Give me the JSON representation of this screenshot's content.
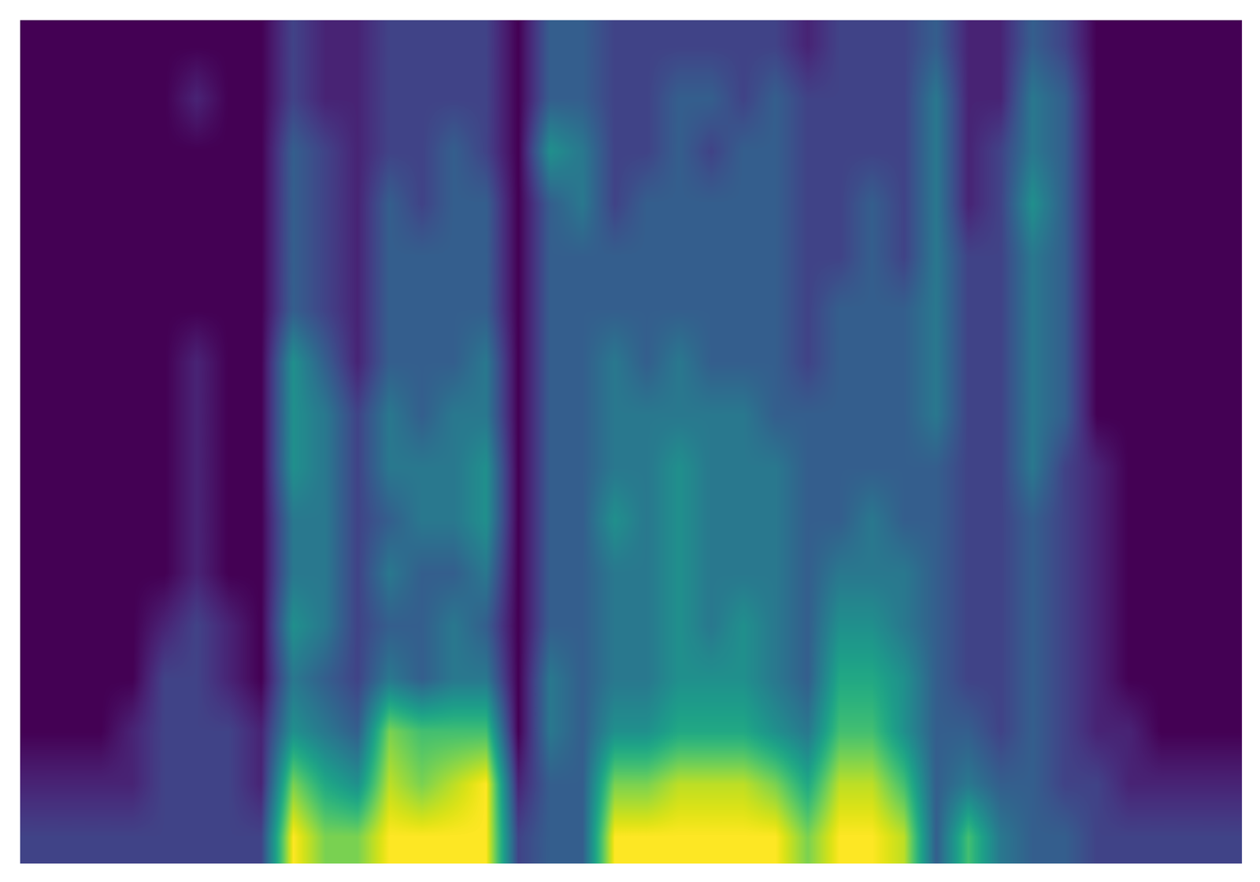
{
  "chart_data": {
    "type": "heatmap",
    "tick_labels": false,
    "cells": [
      [
        0,
        0,
        0,
        0,
        0,
        0,
        0,
        0,
        0,
        0,
        0,
        0,
        0,
        0,
        1,
        2
      ],
      [
        0,
        0,
        0,
        0,
        0,
        0,
        0,
        0,
        0,
        0,
        0,
        0,
        0,
        0,
        1,
        2
      ],
      [
        0,
        0,
        0,
        0,
        0,
        0,
        0,
        0,
        0,
        0,
        0,
        0,
        0,
        0,
        1,
        2
      ],
      [
        0,
        0,
        0,
        0,
        0,
        0,
        0,
        0,
        0,
        0,
        0,
        0,
        0,
        1,
        1,
        2
      ],
      [
        0,
        0,
        0,
        0,
        0,
        0,
        0,
        0,
        0,
        0,
        0,
        1,
        2,
        2,
        2,
        2
      ],
      [
        0,
        1,
        0,
        0,
        0,
        0,
        1,
        1,
        1,
        1,
        1,
        2,
        2,
        2,
        2,
        2
      ],
      [
        0,
        0,
        0,
        0,
        0,
        0,
        0,
        0,
        0,
        0,
        0,
        1,
        1,
        2,
        2,
        2
      ],
      [
        0,
        0,
        0,
        0,
        0,
        0,
        0,
        0,
        0,
        0,
        0,
        0,
        0,
        1,
        1,
        2
      ],
      [
        2,
        2,
        3,
        3,
        3,
        3,
        5,
        5,
        5,
        4,
        4,
        5,
        4,
        5,
        8,
        10
      ],
      [
        1,
        1,
        2,
        2,
        2,
        2,
        3,
        4,
        4,
        4,
        4,
        4,
        3,
        4,
        6,
        8
      ],
      [
        1,
        1,
        1,
        1,
        1,
        1,
        1,
        2,
        2,
        2,
        2,
        2,
        2,
        3,
        5,
        8
      ],
      [
        2,
        2,
        2,
        3,
        3,
        3,
        3,
        4,
        4,
        3,
        4,
        3,
        4,
        8,
        9,
        10
      ],
      [
        2,
        2,
        2,
        2,
        3,
        3,
        3,
        3,
        4,
        4,
        3,
        3,
        3,
        7,
        8,
        10
      ],
      [
        2,
        2,
        3,
        3,
        3,
        3,
        3,
        4,
        4,
        4,
        3,
        4,
        4,
        7,
        9,
        10
      ],
      [
        2,
        2,
        2,
        3,
        3,
        3,
        4,
        4,
        5,
        5,
        4,
        3,
        4,
        7,
        10,
        10
      ],
      [
        0,
        0,
        0,
        0,
        0,
        0,
        0,
        0,
        0,
        0,
        0,
        0,
        0,
        0,
        1,
        2
      ],
      [
        3,
        3,
        5,
        3,
        3,
        3,
        3,
        3,
        3,
        3,
        3,
        3,
        4,
        4,
        3,
        3
      ],
      [
        3,
        3,
        4,
        4,
        3,
        3,
        3,
        3,
        3,
        3,
        3,
        3,
        3,
        3,
        3,
        3
      ],
      [
        2,
        2,
        2,
        2,
        3,
        3,
        4,
        4,
        4,
        5,
        4,
        4,
        4,
        5,
        8,
        10
      ],
      [
        2,
        2,
        2,
        3,
        3,
        3,
        3,
        4,
        4,
        4,
        4,
        4,
        4,
        5,
        8,
        10
      ],
      [
        2,
        3,
        3,
        3,
        3,
        3,
        4,
        4,
        5,
        5,
        5,
        5,
        5,
        6,
        9,
        10
      ],
      [
        2,
        3,
        2,
        3,
        3,
        3,
        3,
        4,
        4,
        4,
        4,
        4,
        5,
        6,
        9,
        10
      ],
      [
        2,
        2,
        3,
        3,
        3,
        3,
        3,
        4,
        4,
        4,
        4,
        5,
        5,
        6,
        9,
        10
      ],
      [
        2,
        3,
        3,
        3,
        3,
        3,
        3,
        3,
        4,
        4,
        4,
        4,
        4,
        5,
        8,
        10
      ],
      [
        1,
        2,
        2,
        2,
        2,
        2,
        2,
        3,
        3,
        3,
        3,
        3,
        3,
        4,
        6,
        8
      ],
      [
        2,
        2,
        2,
        2,
        2,
        3,
        3,
        3,
        3,
        3,
        4,
        5,
        6,
        7,
        9,
        10
      ],
      [
        2,
        2,
        2,
        3,
        3,
        3,
        3,
        3,
        3,
        4,
        4,
        5,
        6,
        7,
        9,
        10
      ],
      [
        2,
        2,
        2,
        2,
        2,
        3,
        3,
        3,
        3,
        3,
        4,
        4,
        5,
        5,
        7,
        9
      ],
      [
        3,
        4,
        4,
        4,
        4,
        4,
        4,
        4,
        3,
        3,
        3,
        3,
        3,
        3,
        3,
        3
      ],
      [
        1,
        1,
        1,
        1,
        2,
        2,
        2,
        2,
        2,
        2,
        2,
        2,
        2,
        3,
        4,
        7
      ],
      [
        1,
        1,
        2,
        2,
        2,
        2,
        2,
        2,
        2,
        2,
        2,
        2,
        2,
        2,
        3,
        4
      ],
      [
        3,
        4,
        4,
        5,
        4,
        4,
        4,
        4,
        4,
        3,
        3,
        3,
        3,
        3,
        3,
        3
      ],
      [
        2,
        3,
        3,
        3,
        3,
        3,
        3,
        3,
        2,
        2,
        2,
        2,
        2,
        2,
        2,
        3
      ],
      [
        0,
        0,
        0,
        0,
        0,
        0,
        0,
        0,
        1,
        1,
        1,
        1,
        1,
        1,
        2,
        2
      ],
      [
        0,
        0,
        0,
        0,
        0,
        0,
        0,
        0,
        0,
        0,
        0,
        0,
        0,
        1,
        1,
        2
      ],
      [
        0,
        0,
        0,
        0,
        0,
        0,
        0,
        0,
        0,
        0,
        0,
        0,
        0,
        0,
        1,
        2
      ],
      [
        0,
        0,
        0,
        0,
        0,
        0,
        0,
        0,
        0,
        0,
        0,
        0,
        0,
        0,
        1,
        2
      ],
      [
        0,
        0,
        0,
        0,
        0,
        0,
        0,
        0,
        0,
        0,
        0,
        0,
        0,
        0,
        1,
        2
      ]
    ]
  }
}
